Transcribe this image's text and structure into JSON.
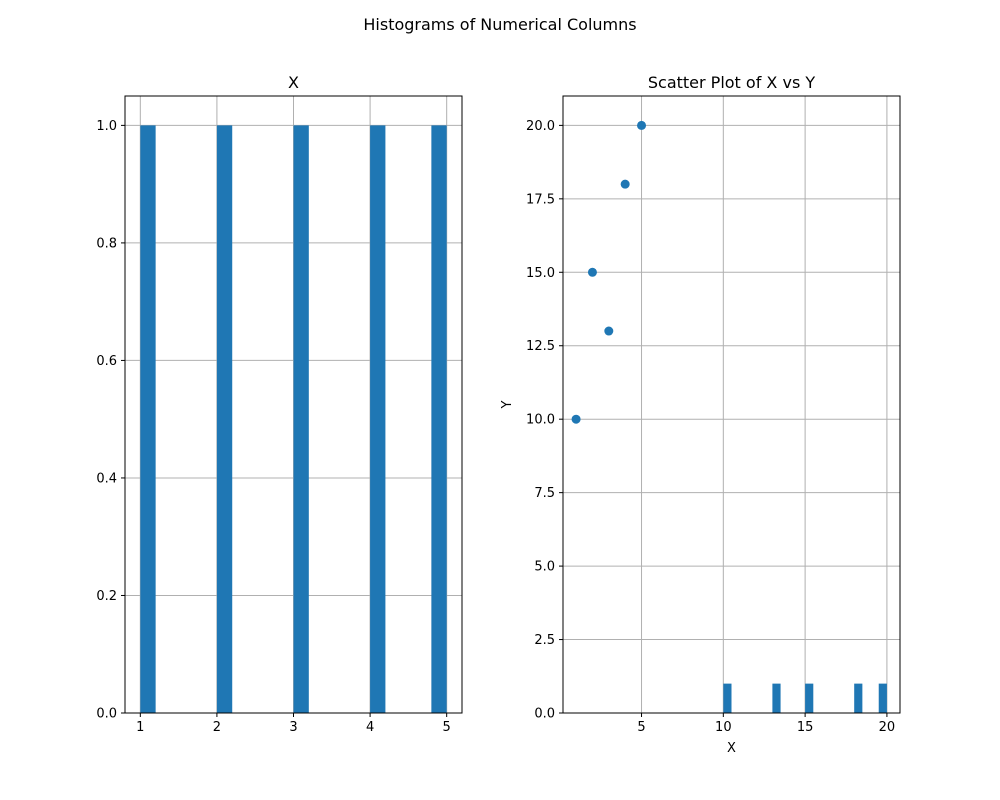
{
  "figure": {
    "suptitle": "Histograms of Numerical Columns"
  },
  "colors": {
    "bar": "#1f77b4",
    "point": "#1f77b4",
    "grid": "#b0b0b0",
    "axes": "#000000"
  },
  "chart_data": [
    {
      "type": "bar",
      "subtype": "histogram",
      "title": "X",
      "xlabel": "",
      "ylabel": "",
      "grid": true,
      "xlim": [
        0.8,
        5.2
      ],
      "ylim": [
        0,
        1.05
      ],
      "xticks": [
        1,
        2,
        3,
        4,
        5
      ],
      "yticks": [
        0.0,
        0.2,
        0.4,
        0.6,
        0.8,
        1.0
      ],
      "ytick_format": 1,
      "bins": [
        {
          "x0": 1.0,
          "x1": 1.2,
          "value": 1
        },
        {
          "x0": 2.0,
          "x1": 2.2,
          "value": 1
        },
        {
          "x0": 3.0,
          "x1": 3.2,
          "value": 1
        },
        {
          "x0": 4.0,
          "x1": 4.2,
          "value": 1
        },
        {
          "x0": 4.8,
          "x1": 5.0,
          "value": 1
        }
      ]
    },
    {
      "type": "scatter",
      "title": "Scatter Plot of X vs Y",
      "xlabel": "X",
      "ylabel": "Y",
      "grid": true,
      "xlim": [
        0.2,
        20.8
      ],
      "ylim": [
        0,
        21
      ],
      "xticks": [
        5,
        10,
        15,
        20
      ],
      "yticks": [
        0.0,
        2.5,
        5.0,
        7.5,
        10.0,
        12.5,
        15.0,
        17.5,
        20.0
      ],
      "ytick_format": 1,
      "series": [
        {
          "type": "scatter",
          "x": [
            1,
            2,
            3,
            4,
            5
          ],
          "y": [
            10,
            15,
            13,
            18,
            20
          ]
        },
        {
          "type": "histogram",
          "bins": [
            {
              "x0": 10.0,
              "x1": 10.5,
              "value": 1
            },
            {
              "x0": 13.0,
              "x1": 13.5,
              "value": 1
            },
            {
              "x0": 15.0,
              "x1": 15.5,
              "value": 1
            },
            {
              "x0": 18.0,
              "x1": 18.5,
              "value": 1
            },
            {
              "x0": 19.5,
              "x1": 20.0,
              "value": 1
            }
          ]
        }
      ]
    }
  ]
}
